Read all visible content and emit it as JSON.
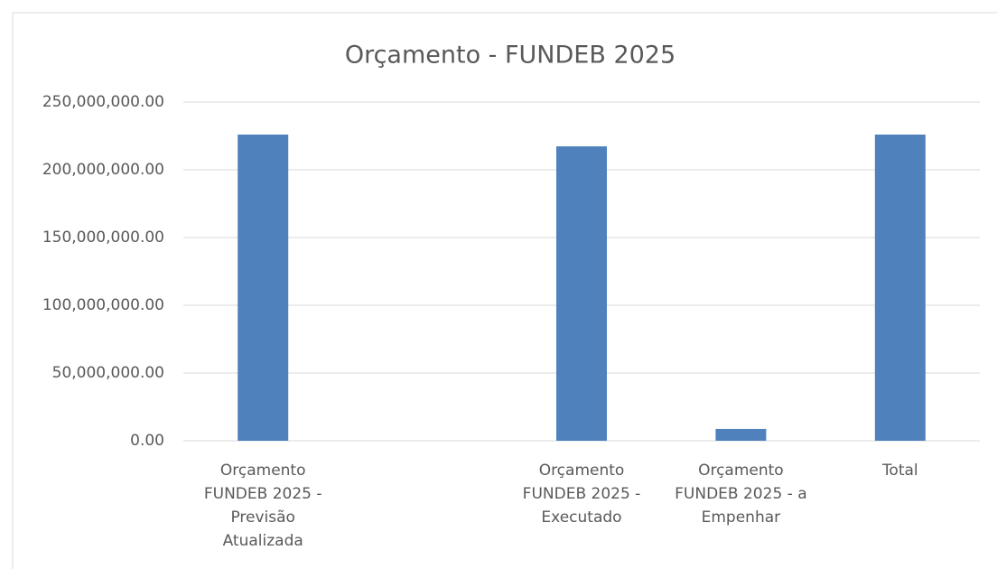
{
  "chart_data": {
    "type": "bar",
    "title": "Orçamento - FUNDEB 2025",
    "categories": [
      "Orçamento FUNDEB 2025 - Previsão Atualizada",
      null,
      "Orçamento FUNDEB 2025 - Executado",
      "Orçamento FUNDEB 2025 - a Empenhar",
      "Total"
    ],
    "values": [
      226000000,
      null,
      217300000,
      8700000,
      226000000
    ],
    "color": "#4f81bd",
    "ylim": [
      0,
      250000000
    ],
    "yticks": [
      {
        "value": 0,
        "label": "0.00"
      },
      {
        "value": 50000000,
        "label": "50,000,000.00"
      },
      {
        "value": 100000000,
        "label": "100,000,000.00"
      },
      {
        "value": 150000000,
        "label": "150,000,000.00"
      },
      {
        "value": 200000000,
        "label": "200,000,000.00"
      },
      {
        "value": 250000000,
        "label": "250,000,000.00"
      }
    ],
    "grid": true
  }
}
